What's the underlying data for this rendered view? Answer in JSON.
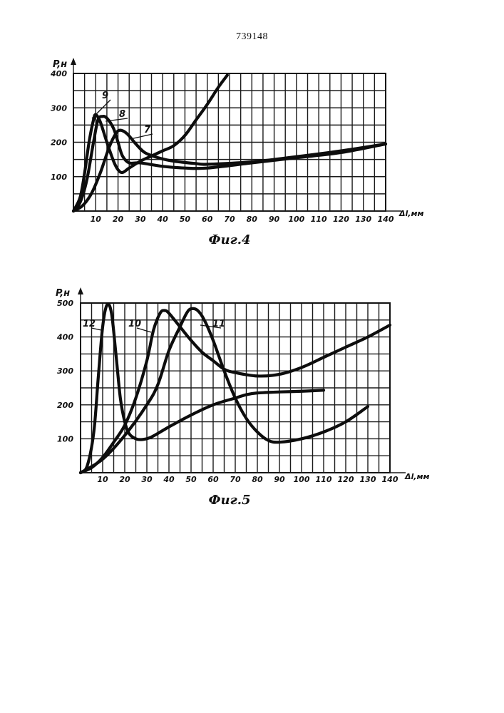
{
  "page": {
    "number": "739148"
  },
  "chart_data": [
    {
      "type": "line",
      "caption": "Фиг.4",
      "ylabel": "P,н",
      "xlabel": "Δl,мм",
      "xlim": [
        0,
        140
      ],
      "ylim": [
        0,
        400
      ],
      "x_ticks": [
        "10",
        "20",
        "30",
        "40",
        "50",
        "60",
        "70",
        "80",
        "90",
        "100",
        "110",
        "120",
        "130",
        "140"
      ],
      "y_ticks": [
        "100",
        "200",
        "300",
        "400"
      ],
      "grid": true,
      "series": [
        {
          "name": "9",
          "points": [
            [
              0,
              0
            ],
            [
              3,
              40
            ],
            [
              5,
              110
            ],
            [
              7,
              200
            ],
            [
              9,
              265
            ],
            [
              10,
              280
            ],
            [
              12,
              260
            ],
            [
              15,
              200
            ],
            [
              18,
              145
            ],
            [
              20,
              120
            ],
            [
              22,
              112
            ],
            [
              25,
              125
            ],
            [
              30,
              145
            ],
            [
              35,
              160
            ],
            [
              40,
              175
            ],
            [
              45,
              190
            ],
            [
              50,
              220
            ],
            [
              55,
              265
            ],
            [
              60,
              310
            ],
            [
              65,
              360
            ],
            [
              69,
              395
            ]
          ]
        },
        {
          "name": "8",
          "points": [
            [
              0,
              0
            ],
            [
              3,
              25
            ],
            [
              6,
              90
            ],
            [
              9,
              200
            ],
            [
              11,
              265
            ],
            [
              13,
              275
            ],
            [
              15,
              270
            ],
            [
              18,
              240
            ],
            [
              20,
              200
            ],
            [
              22,
              160
            ],
            [
              25,
              140
            ],
            [
              30,
              140
            ],
            [
              40,
              130
            ],
            [
              50,
              125
            ],
            [
              60,
              125
            ],
            [
              80,
              140
            ],
            [
              100,
              155
            ],
            [
              120,
              170
            ],
            [
              140,
              195
            ]
          ]
        },
        {
          "name": "7",
          "points": [
            [
              0,
              0
            ],
            [
              4,
              15
            ],
            [
              8,
              50
            ],
            [
              12,
              110
            ],
            [
              16,
              185
            ],
            [
              19,
              225
            ],
            [
              21,
              235
            ],
            [
              24,
              225
            ],
            [
              28,
              195
            ],
            [
              32,
              170
            ],
            [
              38,
              155
            ],
            [
              45,
              145
            ],
            [
              55,
              138
            ],
            [
              60,
              136
            ],
            [
              80,
              143
            ],
            [
              100,
              158
            ],
            [
              120,
              175
            ],
            [
              140,
              195
            ]
          ]
        }
      ]
    },
    {
      "type": "line",
      "caption": "Фиг.5",
      "ylabel": "P,н",
      "xlabel": "Δl,мм",
      "xlim": [
        0,
        140
      ],
      "ylim": [
        0,
        500
      ],
      "x_ticks": [
        "10",
        "20",
        "30",
        "40",
        "50",
        "60",
        "70",
        "80",
        "90",
        "100",
        "110",
        "120",
        "130",
        "140"
      ],
      "y_ticks": [
        "100",
        "200",
        "300",
        "400",
        "500"
      ],
      "grid": true,
      "series": [
        {
          "name": "12",
          "points": [
            [
              0,
              0
            ],
            [
              3,
              20
            ],
            [
              6,
              120
            ],
            [
              8,
              280
            ],
            [
              10,
              430
            ],
            [
              12,
              495
            ],
            [
              14,
              470
            ],
            [
              16,
              350
            ],
            [
              18,
              220
            ],
            [
              20,
              150
            ],
            [
              22,
              115
            ],
            [
              25,
              100
            ],
            [
              28,
              98
            ],
            [
              32,
              105
            ],
            [
              40,
              135
            ],
            [
              50,
              170
            ],
            [
              60,
              200
            ],
            [
              70,
              220
            ],
            [
              75,
              230
            ],
            [
              80,
              235
            ],
            [
              90,
              238
            ],
            [
              100,
              240
            ],
            [
              110,
              243
            ]
          ]
        },
        {
          "name": "10",
          "points": [
            [
              0,
              0
            ],
            [
              5,
              15
            ],
            [
              10,
              45
            ],
            [
              15,
              90
            ],
            [
              20,
              140
            ],
            [
              25,
              220
            ],
            [
              30,
              330
            ],
            [
              33,
              420
            ],
            [
              36,
              470
            ],
            [
              38,
              478
            ],
            [
              40,
              470
            ],
            [
              45,
              430
            ],
            [
              50,
              390
            ],
            [
              55,
              355
            ],
            [
              60,
              330
            ],
            [
              65,
              305
            ],
            [
              70,
              295
            ],
            [
              80,
              285
            ],
            [
              90,
              290
            ],
            [
              100,
              310
            ],
            [
              110,
              340
            ],
            [
              120,
              370
            ],
            [
              130,
              400
            ],
            [
              140,
              435
            ]
          ]
        },
        {
          "name": "11",
          "points": [
            [
              0,
              0
            ],
            [
              10,
              40
            ],
            [
              20,
              110
            ],
            [
              30,
              200
            ],
            [
              35,
              260
            ],
            [
              40,
              360
            ],
            [
              45,
              430
            ],
            [
              48,
              470
            ],
            [
              50,
              483
            ],
            [
              53,
              478
            ],
            [
              56,
              450
            ],
            [
              60,
              390
            ],
            [
              65,
              300
            ],
            [
              70,
              220
            ],
            [
              75,
              160
            ],
            [
              80,
              120
            ],
            [
              85,
              95
            ],
            [
              90,
              90
            ],
            [
              100,
              100
            ],
            [
              110,
              120
            ],
            [
              120,
              150
            ],
            [
              130,
              195
            ]
          ]
        }
      ]
    }
  ]
}
